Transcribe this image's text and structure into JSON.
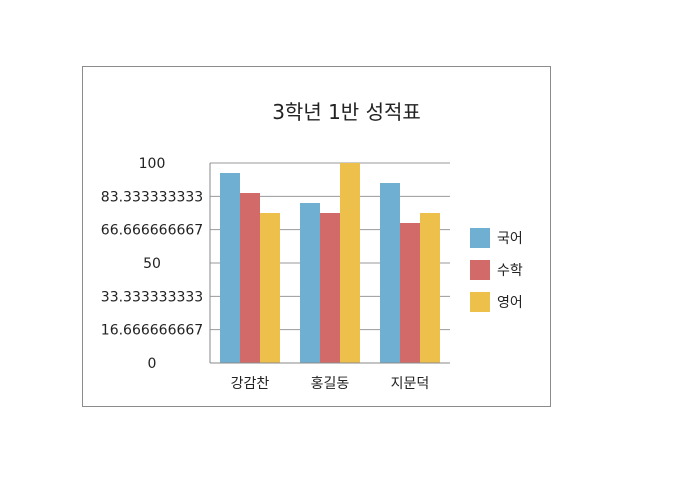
{
  "chart_data": {
    "type": "bar",
    "title": "3학년 1반 성적표",
    "categories": [
      "강감찬",
      "홍길동",
      "지문덕"
    ],
    "series": [
      {
        "name": "국어",
        "color": "#6fb0d2",
        "values": [
          95,
          80,
          90
        ]
      },
      {
        "name": "수학",
        "color": "#d26a6a",
        "values": [
          85,
          75,
          70
        ]
      },
      {
        "name": "영어",
        "color": "#ecc04a",
        "values": [
          75,
          100,
          75
        ]
      }
    ],
    "yticks": [
      "0",
      "16.666666667",
      "33.333333333",
      "50",
      "66.666666667",
      "83.333333333",
      "100"
    ],
    "ylim": [
      0,
      100
    ],
    "grid": true,
    "legend": "right"
  }
}
